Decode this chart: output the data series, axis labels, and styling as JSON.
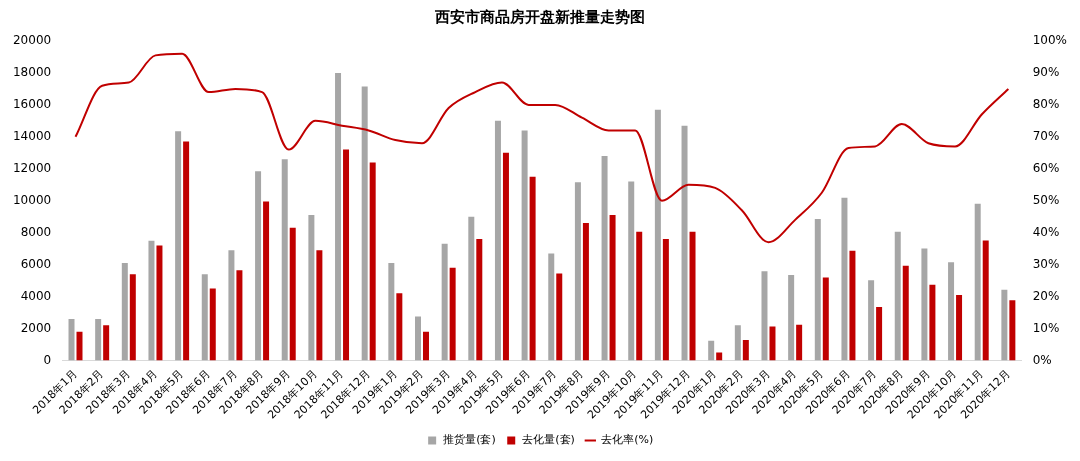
{
  "chart_data": {
    "type": "bar",
    "title": "西安市商品房开盘新推量走势图",
    "categories": [
      "2018年1月",
      "2018年2月",
      "2018年3月",
      "2018年4月",
      "2018年5月",
      "2018年6月",
      "2018年7月",
      "2018年8月",
      "2018年9月",
      "2018年10月",
      "2018年11月",
      "2018年12月",
      "2019年1月",
      "2019年2月",
      "2019年3月",
      "2019年4月",
      "2019年5月",
      "2019年6月",
      "2019年7月",
      "2019年8月",
      "2019年9月",
      "2019年10月",
      "2019年11月",
      "2019年12月",
      "2020年1月",
      "2020年2月",
      "2020年3月",
      "2020年4月",
      "2020年5月",
      "2020年6月",
      "2020年7月",
      "2020年8月",
      "2020年9月",
      "2020年10月",
      "2020年11月",
      "2020年12月"
    ],
    "series": [
      {
        "name": "推货量(套)",
        "color": "#a6a6a6",
        "values": [
          2600,
          2600,
          6100,
          7500,
          14350,
          5400,
          6900,
          11850,
          12600,
          9100,
          18000,
          17150,
          6100,
          2750,
          7300,
          9000,
          15000,
          14400,
          6700,
          11150,
          12800,
          11200,
          15700,
          14700,
          1230,
          2200,
          5580,
          5350,
          8860,
          10190,
          5020,
          8050,
          7000,
          6140,
          9810,
          4420
        ]
      },
      {
        "name": "去化量(套)",
        "color": "#c00000",
        "values": [
          1800,
          2200,
          5400,
          7200,
          13700,
          4500,
          5650,
          9950,
          8300,
          6900,
          13200,
          12400,
          4200,
          1800,
          5800,
          7600,
          13000,
          11500,
          5450,
          8600,
          9100,
          8050,
          7600,
          8050,
          490,
          1280,
          2120,
          2230,
          5190,
          6860,
          3350,
          5930,
          4740,
          4090,
          7510,
          3770
        ]
      },
      {
        "name": "去化率(%)",
        "type": "line",
        "axis": "y2",
        "color": "#c00000",
        "values": [
          70,
          86,
          87,
          95.5,
          96,
          84,
          85,
          84,
          66,
          75,
          73.5,
          72,
          69,
          68,
          79,
          84,
          87,
          80,
          80,
          76,
          72,
          72,
          50,
          55,
          54,
          47,
          37,
          44,
          52.5,
          66.5,
          67,
          74,
          68,
          67,
          77,
          85
        ]
      }
    ],
    "ylim": [
      0,
      20000
    ],
    "yticks": [
      0,
      2000,
      4000,
      6000,
      8000,
      10000,
      12000,
      14000,
      16000,
      18000,
      20000
    ],
    "y2lim": [
      0,
      100
    ],
    "y2ticks": [
      {
        "value": 0,
        "label": "0%"
      },
      {
        "value": 10,
        "label": "10%"
      },
      {
        "value": 20,
        "label": "20%"
      },
      {
        "value": 30,
        "label": "30%"
      },
      {
        "value": 40,
        "label": "40%"
      },
      {
        "value": 50,
        "label": "50%"
      },
      {
        "value": 60,
        "label": "60%"
      },
      {
        "value": 70,
        "label": "70%"
      },
      {
        "value": 80,
        "label": "80%"
      },
      {
        "value": 90,
        "label": "90%"
      },
      {
        "value": 100,
        "label": "100%"
      }
    ],
    "legend": "bottom",
    "grid": false,
    "marker": "none",
    "line_style": "solid"
  }
}
